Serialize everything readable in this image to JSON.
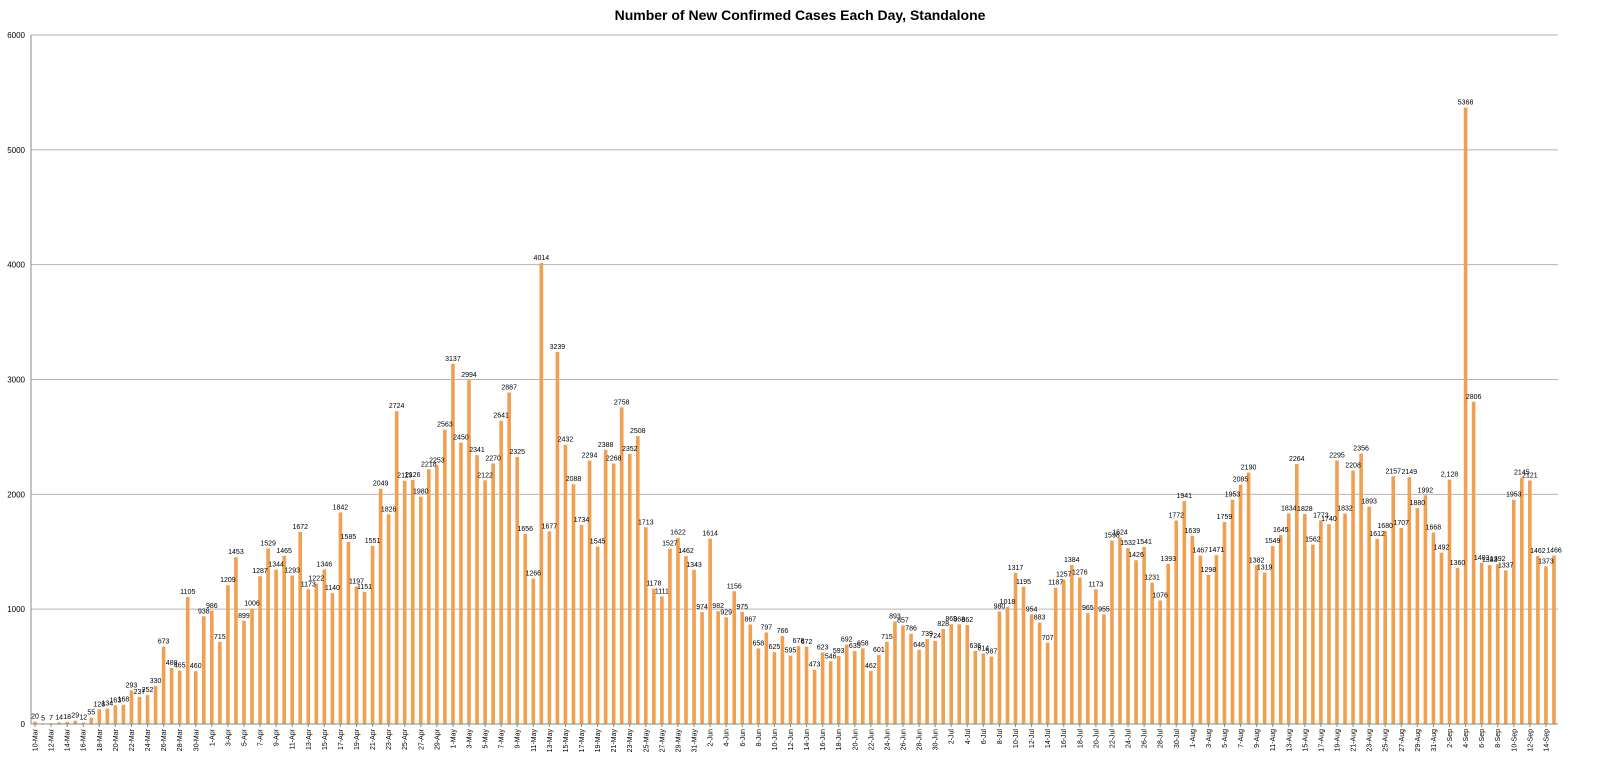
{
  "chart_data": {
    "type": "bar",
    "title": "Number of New Confirmed Cases Each Day, Standalone",
    "xlabel": "",
    "ylabel": "",
    "ylim": [
      0,
      6000
    ],
    "yticks": [
      0,
      1000,
      2000,
      3000,
      4000,
      5000,
      6000
    ],
    "grid": true,
    "legend": "none",
    "bar_color": "#F0A050",
    "x_tick_labels": [
      "10-Mar",
      "12-Mar",
      "14-Mar",
      "16-Mar",
      "18-Mar",
      "20-Mar",
      "22-Mar",
      "24-Mar",
      "26-Mar",
      "28-Mar",
      "30-Mar",
      "1-Apr",
      "3-Apr",
      "5-Apr",
      "7-Apr",
      "9-Apr",
      "11-Apr",
      "13-Apr",
      "15-Apr",
      "17-Apr",
      "19-Apr",
      "21-Apr",
      "23-Apr",
      "25-Apr",
      "27-Apr",
      "29-Apr",
      "1-May",
      "3-May",
      "5-May",
      "7-May",
      "9-May",
      "11-May",
      "13-May",
      "15-May",
      "17-May",
      "19-May",
      "21-May",
      "23-May",
      "25-May",
      "27-May",
      "29-May",
      "31-May",
      "2-Jun",
      "4-Jun",
      "6-Jun",
      "8-Jun",
      "10-Jun",
      "12-Jun",
      "14-Jun",
      "16-Jun",
      "18-Jun",
      "20-Jun",
      "22-Jun",
      "24-Jun",
      "26-Jun",
      "28-Jun",
      "30-Jun",
      "2-Jul",
      "4-Jul",
      "6-Jul",
      "8-Jul",
      "10-Jul",
      "12-Jul",
      "14-Jul",
      "16-Jul",
      "18-Jul",
      "20-Jul",
      "22-Jul",
      "24-Jul",
      "26-Jul",
      "28-Jul",
      "30-Jul",
      "1-Aug",
      "3-Aug",
      "5-Aug",
      "7-Aug",
      "9-Aug",
      "11-Aug",
      "13-Aug",
      "15-Aug",
      "17-Aug",
      "19-Aug",
      "21-Aug",
      "23-Aug",
      "25-Aug",
      "27-Aug",
      "29-Aug",
      "31-Aug",
      "2-Sep",
      "4-Sep",
      "6-Sep",
      "8-Sep",
      "10-Sep",
      "12-Sep",
      "14-Sep"
    ],
    "values": [
      20,
      5,
      7,
      14,
      18,
      29,
      12,
      55,
      128,
      134,
      163,
      168,
      293,
      237,
      252,
      330,
      673,
      488,
      465,
      1105,
      460,
      938,
      986,
      715,
      1209,
      1453,
      899,
      1006,
      1287,
      1529,
      1344,
      1465,
      1293,
      1672,
      1173,
      1222,
      1346,
      1140,
      1842,
      1585,
      1197,
      1151,
      1551,
      2049,
      1826,
      2724,
      2119,
      2126,
      1980,
      2218,
      2253,
      2563,
      3137,
      2450,
      2994,
      2341,
      2122,
      2270,
      2641,
      2887,
      2325,
      1656,
      1266,
      4014,
      1677,
      3239,
      2432,
      2088,
      1734,
      2294,
      1545,
      2388,
      2268,
      2758,
      2352,
      2508,
      1713,
      1178,
      1111,
      1527,
      1622,
      1462,
      1343,
      974,
      1614,
      982,
      929,
      1156,
      975,
      867,
      658,
      797,
      625,
      766,
      595,
      678,
      672,
      473,
      623,
      546,
      593,
      692,
      635,
      658,
      462,
      601,
      715,
      893,
      857,
      786,
      646,
      739,
      724,
      828,
      869,
      868,
      862,
      636,
      614,
      587,
      980,
      1018,
      1317,
      1195,
      954,
      883,
      707,
      1187,
      1257,
      1384,
      1276,
      965,
      1173,
      955,
      1598,
      1624,
      1532,
      1426,
      1541,
      1231,
      1076,
      1393,
      1772,
      1941,
      1639,
      1467,
      1298,
      1471,
      1759,
      1953,
      2085,
      2190,
      1382,
      1319,
      1549,
      1645,
      1834,
      2264,
      1828,
      1562,
      1773,
      1740,
      2295,
      1832,
      2208,
      2356,
      1893,
      1612,
      1680,
      2157,
      1707,
      2149,
      1880,
      1992,
      1668,
      1492,
      2128,
      1360,
      5368,
      2806,
      1403,
      1383,
      1392,
      1337,
      1953,
      2145,
      2121,
      1462,
      1373,
      1466
    ],
    "data_labels": [
      "20",
      "5",
      "7",
      "14",
      "18",
      "29",
      "12",
      "55",
      "128",
      "134",
      "163",
      "168",
      "293",
      "237",
      "252",
      "330",
      "673",
      "488",
      "465",
      "1105",
      "460",
      "938",
      "986",
      "715",
      "1209",
      "1453",
      "899",
      "1006",
      "1287",
      "1529",
      "1344",
      "1465",
      "1293",
      "1672",
      "1173",
      "1222",
      "1346",
      "1140",
      "1842",
      "1585",
      "1197",
      "1151",
      "1551",
      "2049",
      "1826",
      "2724",
      "2119",
      "2126",
      "1980",
      "2218",
      "2253",
      "2563",
      "3137",
      "2450",
      "2994",
      "2341",
      "2122",
      "2270",
      "2641",
      "2887",
      "2325",
      "1656",
      "1266",
      "4014",
      "1677",
      "3239",
      "2432",
      "2088",
      "1734",
      "2294",
      "1545",
      "2388",
      "2268",
      "2758",
      "2352",
      "2508",
      "1713",
      "1178",
      "1111",
      "1527",
      "1622",
      "1462",
      "1343",
      "974",
      "1614",
      "982",
      "929",
      "1156",
      "975",
      "867",
      "658",
      "797",
      "625",
      "766",
      "595",
      "678",
      "672",
      "473",
      "623",
      "546",
      "593",
      "692",
      "635",
      "658",
      "462",
      "601",
      "715",
      "893",
      "857",
      "786",
      "646",
      "739",
      "724",
      "828",
      "869",
      "868",
      "862",
      "636",
      "614",
      "587",
      "980",
      "1018",
      "1317",
      "1195",
      "954",
      "883",
      "707",
      "1187",
      "1257",
      "1384",
      "1276",
      "965",
      "1173",
      "955",
      "1598",
      "1624",
      "1532",
      "1426",
      "1541",
      "1231",
      "1076",
      "1393",
      "1772",
      "1941",
      "1639",
      "1467",
      "1298",
      "1471",
      "1759",
      "1953",
      "2085",
      "2190",
      "1382",
      "1319",
      "1549",
      "1645",
      "1834",
      "2264",
      "1828",
      "1562",
      "1773",
      "1740",
      "2295",
      "1832",
      "2208",
      "2356",
      "1893",
      "1612",
      "1680",
      "2157",
      "1707",
      "2149",
      "1880",
      "1992",
      "1668",
      "1492",
      "2,128",
      "1360",
      "5368",
      "2806",
      "1403",
      "1383",
      "1392",
      "1337",
      "1953",
      "2145",
      "2121",
      "1462",
      "1373",
      "1466"
    ]
  }
}
